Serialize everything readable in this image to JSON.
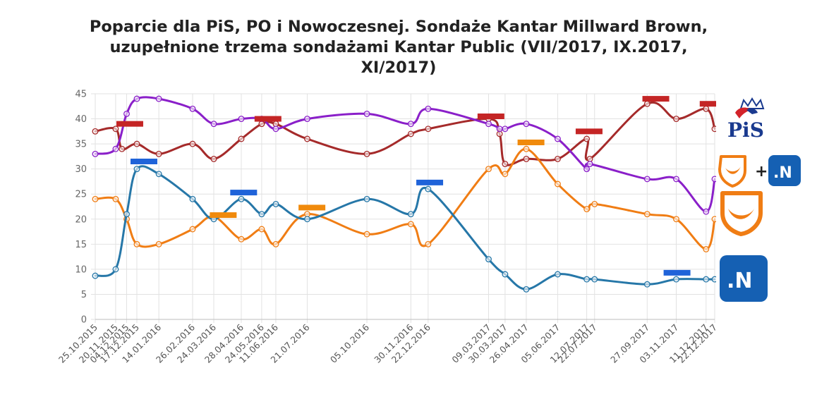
{
  "chart_data": {
    "type": "line",
    "title_lines": [
      "Poparcie dla PiS, PO i Nowoczesnej. Sondaże Kantar Millward Brown,",
      "uzupełnione trzema sondażami Kantar Public (VII/2017, IX.2017,",
      "XI/2017)"
    ],
    "ylim": [
      0,
      45
    ],
    "yticks": [
      0,
      5,
      10,
      15,
      20,
      25,
      30,
      35,
      40,
      45
    ],
    "grid": true,
    "x_dates": [
      "2015-10-25",
      "2015-11-20",
      "2015-12-04",
      "2015-12-17",
      "2016-01-14",
      "2016-02-26",
      "2016-03-24",
      "2016-04-28",
      "2016-05-24",
      "2016-06-11",
      "2016-07-21",
      "2016-10-05",
      "2016-11-30",
      "2016-12-22",
      "2017-03-09",
      "2017-03-30",
      "2017-04-26",
      "2017-06-05",
      "2017-07-12",
      "2017-07-22",
      "2017-09-27",
      "2017-11-03",
      "2017-12-11",
      "2017-12-22"
    ],
    "x_labels": [
      "25.10.2015",
      "20.11.2015",
      "04.12.2015",
      "17.12.2015",
      "14.01.2016",
      "26.02.2016",
      "24.03.2016",
      "28.04.2016",
      "24.05.2016",
      "11.06.2016",
      "21.07.2016",
      "05.10.2016",
      "30.11.2016",
      "22.12.2016",
      "09.03.2017",
      "30.03.2017",
      "26.04.2017",
      "05.06.2017",
      "12.07.2017",
      "22.07.2017",
      "27.09.2017",
      "03.11.2017",
      "11.12.2017",
      "22.12.2017"
    ],
    "series": [
      {
        "key": "pis",
        "color": "#a52a2a",
        "points": [
          [
            "2015-10-25",
            37.5
          ],
          [
            "2015-11-20",
            38
          ],
          [
            "2015-11-28",
            34
          ],
          [
            "2015-12-17",
            35
          ],
          [
            "2016-01-14",
            33
          ],
          [
            "2016-02-26",
            35
          ],
          [
            "2016-03-24",
            32
          ],
          [
            "2016-04-28",
            36
          ],
          [
            "2016-05-24",
            39
          ],
          [
            "2016-06-11",
            39
          ],
          [
            "2016-07-21",
            36
          ],
          [
            "2016-10-05",
            33
          ],
          [
            "2016-11-30",
            37
          ],
          [
            "2016-12-22",
            38
          ],
          [
            "2017-03-09",
            40
          ],
          [
            "2017-03-23",
            37
          ],
          [
            "2017-03-30",
            31
          ],
          [
            "2017-04-26",
            32
          ],
          [
            "2017-06-05",
            32
          ],
          [
            "2017-07-12",
            36
          ],
          [
            "2017-07-16",
            32
          ],
          [
            "2017-09-27",
            43
          ],
          [
            "2017-11-03",
            40
          ],
          [
            "2017-12-11",
            42
          ],
          [
            "2017-12-22",
            38
          ]
        ]
      },
      {
        "key": "po_plus_n",
        "color": "#8a1fc9",
        "points": [
          [
            "2015-10-25",
            33
          ],
          [
            "2015-11-20",
            34
          ],
          [
            "2015-12-04",
            41
          ],
          [
            "2015-12-17",
            44
          ],
          [
            "2016-01-14",
            44
          ],
          [
            "2016-02-26",
            42
          ],
          [
            "2016-03-24",
            39
          ],
          [
            "2016-04-28",
            40
          ],
          [
            "2016-05-24",
            40
          ],
          [
            "2016-06-11",
            38
          ],
          [
            "2016-07-21",
            40
          ],
          [
            "2016-10-05",
            41
          ],
          [
            "2016-11-30",
            39
          ],
          [
            "2016-12-22",
            42
          ],
          [
            "2017-03-09",
            39
          ],
          [
            "2017-03-23",
            38
          ],
          [
            "2017-03-30",
            38
          ],
          [
            "2017-04-26",
            39
          ],
          [
            "2017-06-05",
            36
          ],
          [
            "2017-07-12",
            30
          ],
          [
            "2017-07-16",
            31
          ],
          [
            "2017-09-27",
            28
          ],
          [
            "2017-11-03",
            28
          ],
          [
            "2017-12-11",
            21.5
          ],
          [
            "2017-12-22",
            28
          ]
        ]
      },
      {
        "key": "po",
        "color": "#f07d14",
        "points": [
          [
            "2015-10-25",
            24
          ],
          [
            "2015-11-20",
            24
          ],
          [
            "2015-12-04",
            20
          ],
          [
            "2015-12-17",
            15
          ],
          [
            "2016-01-14",
            15
          ],
          [
            "2016-02-26",
            18
          ],
          [
            "2016-03-24",
            20.5
          ],
          [
            "2016-04-28",
            16
          ],
          [
            "2016-05-24",
            18
          ],
          [
            "2016-06-11",
            15
          ],
          [
            "2016-07-21",
            21
          ],
          [
            "2016-10-05",
            17
          ],
          [
            "2016-11-30",
            19
          ],
          [
            "2016-12-22",
            15
          ],
          [
            "2017-03-09",
            30
          ],
          [
            "2017-03-30",
            29
          ],
          [
            "2017-04-26",
            34
          ],
          [
            "2017-06-05",
            27
          ],
          [
            "2017-07-12",
            22
          ],
          [
            "2017-07-22",
            23
          ],
          [
            "2017-09-27",
            21
          ],
          [
            "2017-11-03",
            20
          ],
          [
            "2017-12-11",
            14
          ],
          [
            "2017-12-22",
            20
          ]
        ]
      },
      {
        "key": "nowoczesna",
        "color": "#2677a8",
        "points": [
          [
            "2015-10-25",
            8.7
          ],
          [
            "2015-11-20",
            10
          ],
          [
            "2015-12-04",
            21
          ],
          [
            "2015-12-17",
            30
          ],
          [
            "2016-01-14",
            29
          ],
          [
            "2016-02-26",
            24
          ],
          [
            "2016-03-24",
            20
          ],
          [
            "2016-04-28",
            24
          ],
          [
            "2016-05-24",
            21
          ],
          [
            "2016-06-11",
            23
          ],
          [
            "2016-07-21",
            20
          ],
          [
            "2016-10-05",
            24
          ],
          [
            "2016-11-30",
            21
          ],
          [
            "2016-12-22",
            26
          ],
          [
            "2017-03-09",
            12
          ],
          [
            "2017-03-30",
            9
          ],
          [
            "2017-04-26",
            6
          ],
          [
            "2017-06-05",
            9
          ],
          [
            "2017-07-12",
            8
          ],
          [
            "2017-07-22",
            8
          ],
          [
            "2017-09-27",
            7
          ],
          [
            "2017-11-03",
            8
          ],
          [
            "2017-12-11",
            8
          ],
          [
            "2017-12-22",
            8
          ]
        ]
      }
    ],
    "kantar_public_markers": [
      {
        "series": "pis",
        "date": "2015-12-08",
        "value": 39
      },
      {
        "series": "pis",
        "date": "2016-06-01",
        "value": 40
      },
      {
        "series": "pis",
        "date": "2017-03-12",
        "value": 40.5
      },
      {
        "series": "pis",
        "date": "2017-07-15",
        "value": 37.5
      },
      {
        "series": "pis",
        "date": "2017-10-08",
        "value": 44
      },
      {
        "series": "pis",
        "date": "2017-12-20",
        "value": 43
      },
      {
        "series": "nowoczesna",
        "date": "2015-12-26",
        "value": 31.5
      },
      {
        "series": "nowoczesna",
        "date": "2016-05-01",
        "value": 25.3
      },
      {
        "series": "nowoczesna",
        "date": "2016-12-24",
        "value": 27.3
      },
      {
        "series": "nowoczesna",
        "date": "2017-11-04",
        "value": 9.3
      },
      {
        "series": "po",
        "date": "2016-04-05",
        "value": 20.8
      },
      {
        "series": "po",
        "date": "2016-07-27",
        "value": 22.3
      },
      {
        "series": "po",
        "date": "2017-05-02",
        "value": 35.3
      }
    ],
    "marker_colors": {
      "pis": "#c42525",
      "nowoczesna": "#1f63d9",
      "po": "#f08a0c"
    }
  },
  "legend": {
    "pis_text": "PiS",
    "plus_text": "+",
    "n_text": ".N",
    "pis_red": "#d3232a",
    "pis_blue": "#1a3a8f",
    "po_orange": "#f07d14",
    "n_blue": "#1560b3"
  }
}
